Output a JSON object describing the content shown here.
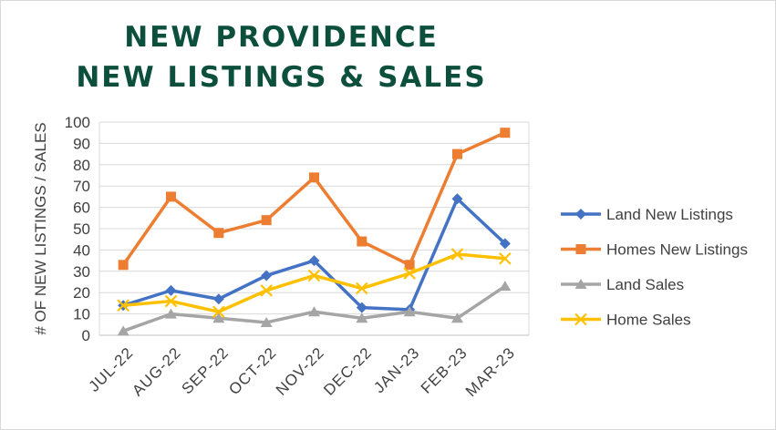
{
  "chart_data": {
    "type": "line",
    "title_lines": [
      "NEW PROVIDENCE",
      "NEW LISTINGS & SALES"
    ],
    "xlabel": "",
    "ylabel": "# OF NEW LISTINGS / SALES",
    "categories": [
      "JUL-22",
      "AUG-22",
      "SEP-22",
      "OCT-22",
      "NOV-22",
      "DEC-22",
      "JAN-23",
      "FEB-23",
      "MAR-23"
    ],
    "ylim": [
      0,
      100
    ],
    "yticks": [
      0,
      10,
      20,
      30,
      40,
      50,
      60,
      70,
      80,
      90,
      100
    ],
    "grid": true,
    "legend_position": "right",
    "series": [
      {
        "name": "Land New Listings",
        "marker": "diamond",
        "color": "#4472c4",
        "values": [
          14,
          21,
          17,
          28,
          35,
          13,
          12,
          64,
          43
        ]
      },
      {
        "name": "Homes New Listings",
        "marker": "square",
        "color": "#ed7d31",
        "values": [
          33,
          65,
          48,
          54,
          74,
          44,
          33,
          85,
          95
        ]
      },
      {
        "name": "Land Sales",
        "marker": "triangle",
        "color": "#a5a5a5",
        "values": [
          2,
          10,
          8,
          6,
          11,
          8,
          11,
          8,
          23
        ]
      },
      {
        "name": "Home Sales",
        "marker": "x",
        "color": "#ffc000",
        "values": [
          14,
          16,
          11,
          21,
          28,
          22,
          29,
          38,
          36
        ]
      }
    ]
  }
}
